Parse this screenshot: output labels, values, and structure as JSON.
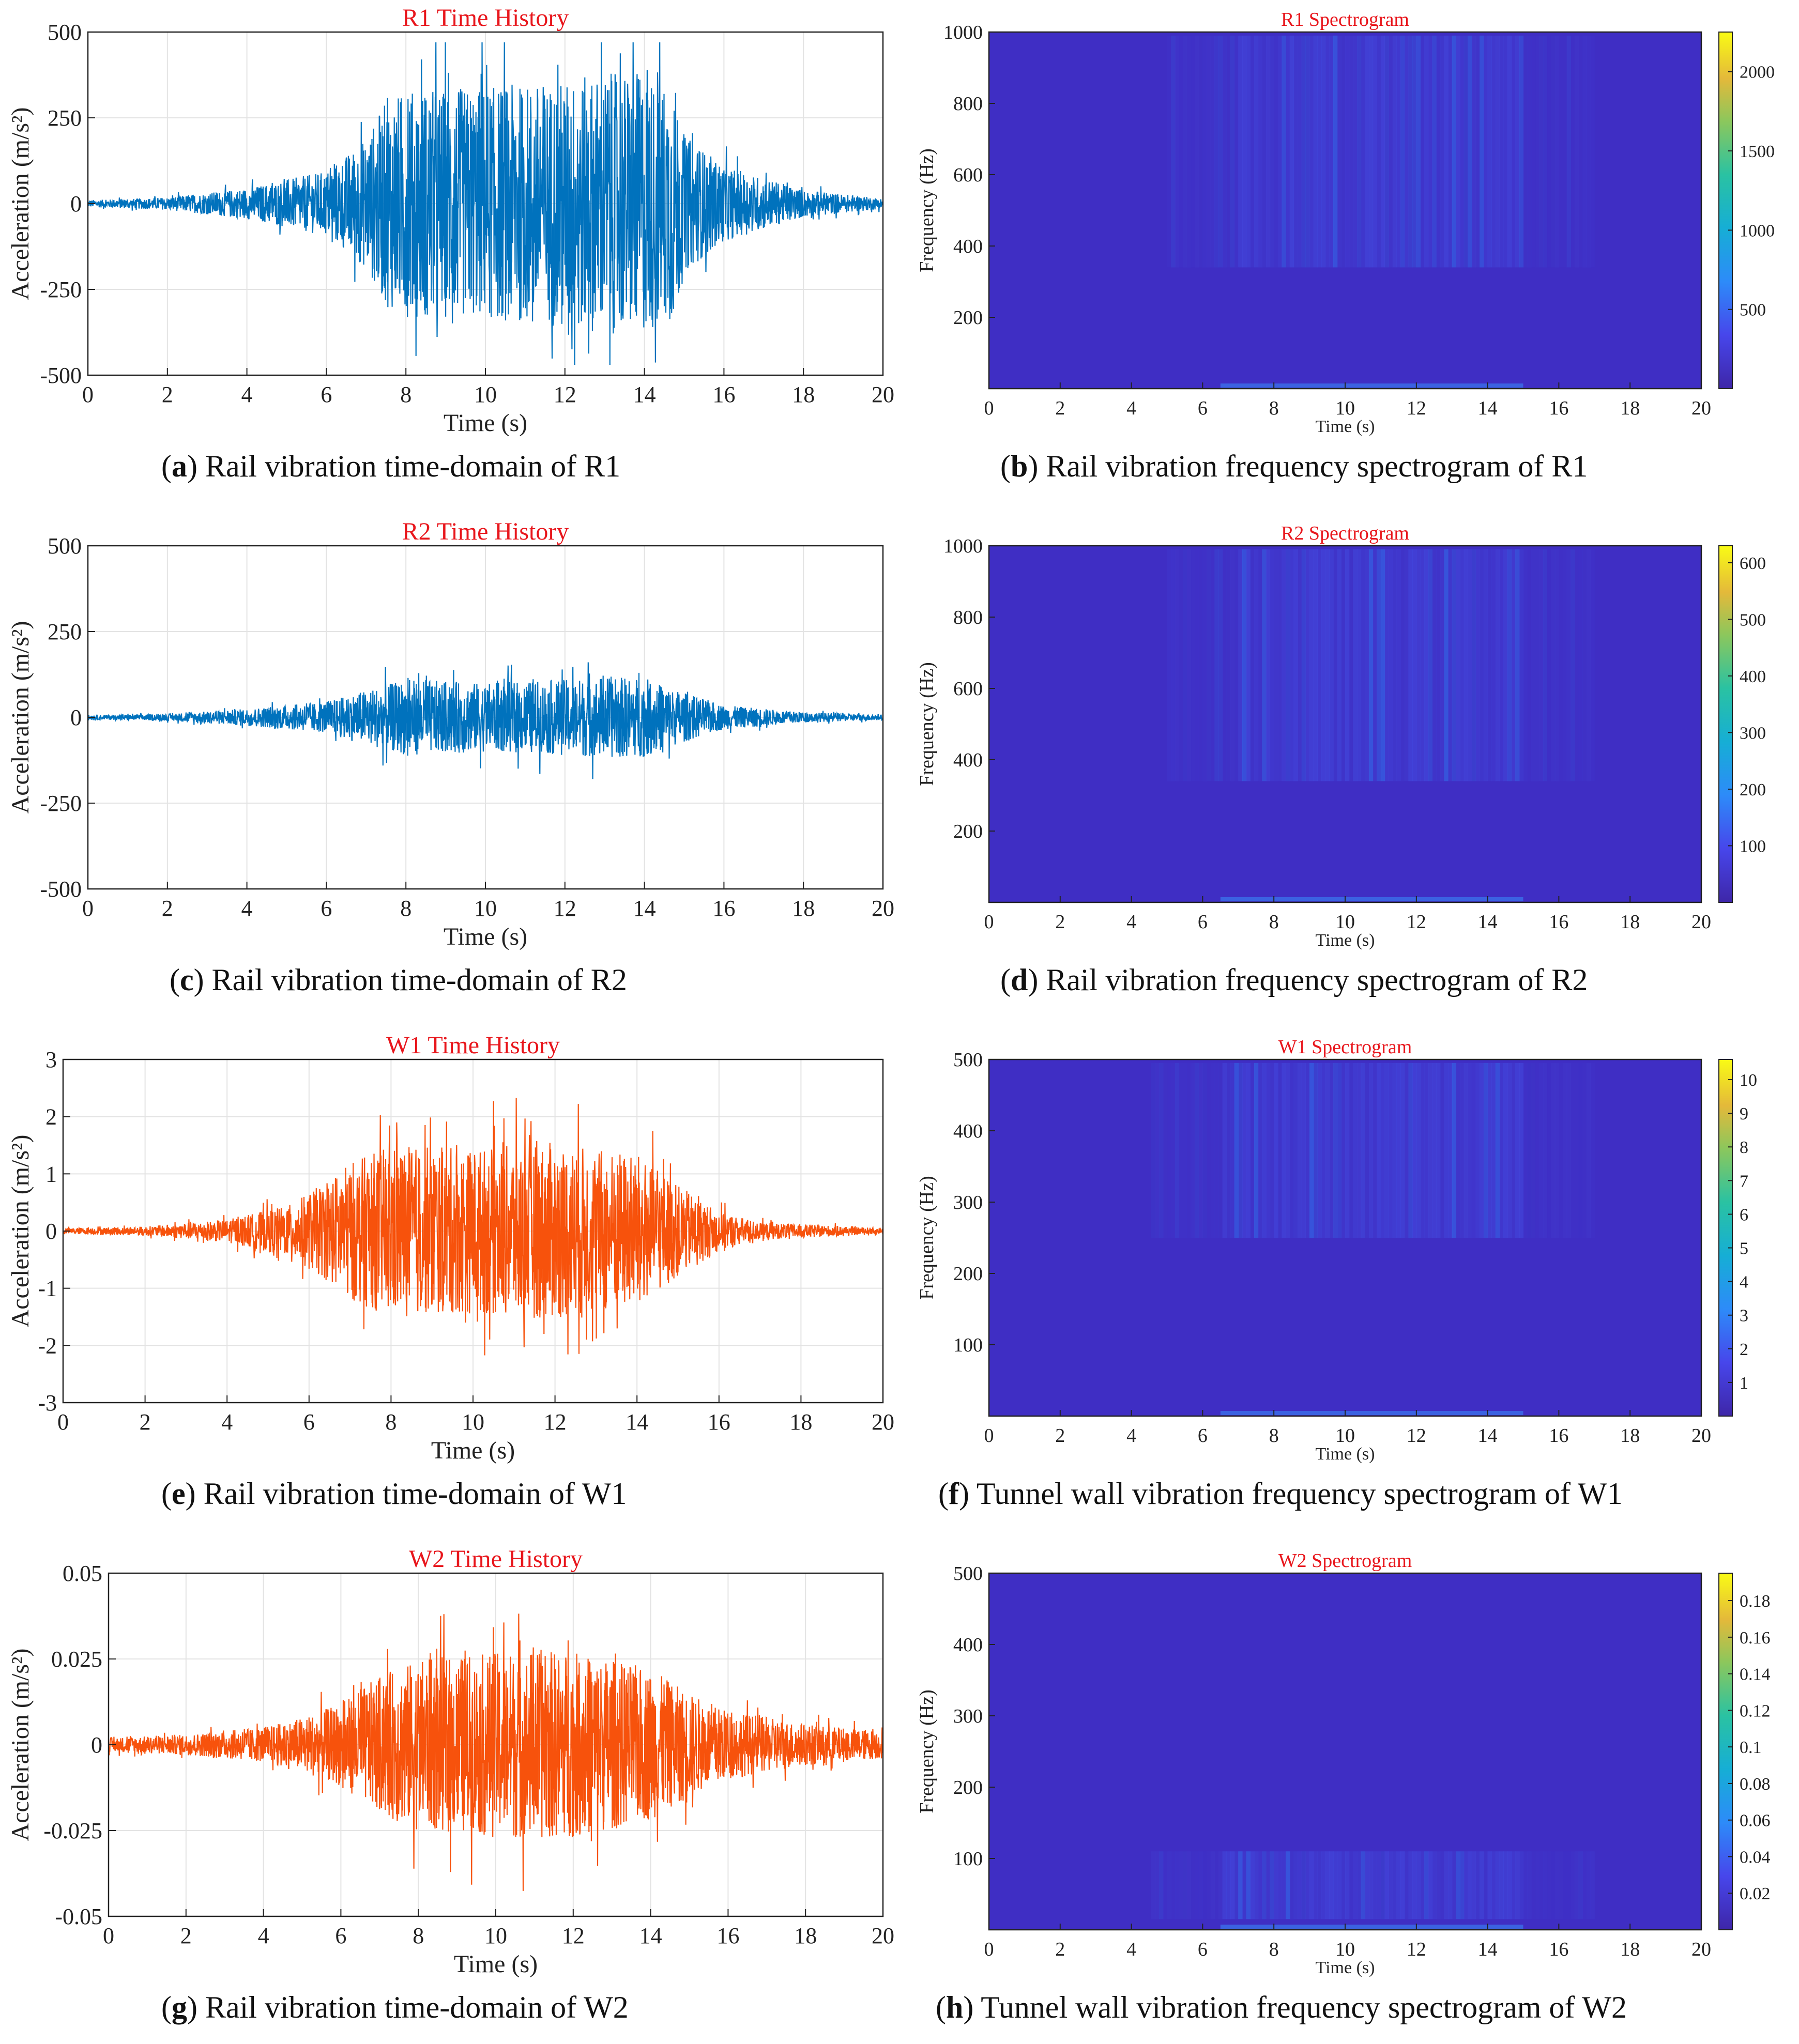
{
  "figure_meta": {
    "time_axis_label": "Time (s)",
    "acc_axis_label": "Acceleration (m/s²)",
    "freq_axis_label": "Frequency (Hz)",
    "colormap": "parula"
  },
  "captions": [
    {
      "letter": "a",
      "text": "Rail vibration time-domain of R1"
    },
    {
      "letter": "b",
      "text": "Rail vibration frequency spectrogram of R1"
    },
    {
      "letter": "c",
      "text": "Rail vibration time-domain of R2"
    },
    {
      "letter": "d",
      "text": "Rail vibration frequency spectrogram of R2"
    },
    {
      "letter": "e",
      "text": "Rail vibration time-domain of W1"
    },
    {
      "letter": "f",
      "text": "Tunnel wall vibration frequency spectrogram of W1"
    },
    {
      "letter": "g",
      "text": "Rail vibration time-domain of W2"
    },
    {
      "letter": "h",
      "text": "Tunnel wall vibration frequency spectrogram of W2"
    }
  ],
  "chart_data": [
    {
      "id": "a",
      "type": "line",
      "title": "R1 Time History",
      "xlabel": "Time (s)",
      "ylabel": "Acceleration (m/s²)",
      "xlim": [
        0,
        20
      ],
      "ylim": [
        -500,
        500
      ],
      "xticks": [
        "0",
        "2",
        "4",
        "6",
        "8",
        "10",
        "12",
        "14",
        "16",
        "18",
        "20"
      ],
      "yticks": [
        "-500",
        "-250",
        "0",
        "250",
        "500"
      ],
      "color": "#0072BD",
      "envelope": {
        "t": [
          0,
          2,
          4,
          6,
          7,
          7.5,
          8,
          10,
          12,
          13,
          14,
          14.8,
          15,
          16,
          18,
          20
        ],
        "amp": [
          10,
          18,
          45,
          95,
          190,
          300,
          330,
          340,
          360,
          380,
          380,
          340,
          200,
          110,
          40,
          15
        ],
        "peak": 470
      }
    },
    {
      "id": "b",
      "type": "heatmap",
      "title": "R1 Spectrogram",
      "xlabel": "Time (s)",
      "ylabel": "Frequency (Hz)",
      "xlim": [
        0,
        20
      ],
      "ylim": [
        0,
        1000
      ],
      "xticks": [
        "0",
        "2",
        "4",
        "6",
        "8",
        "10",
        "12",
        "14",
        "16",
        "18",
        "20"
      ],
      "yticks": [
        "200",
        "400",
        "600",
        "800",
        "1000"
      ],
      "colorbar_ticks": [
        "500",
        "1000",
        "1500",
        "2000"
      ],
      "colorbar_range": [
        0,
        2250
      ],
      "hot_band_hz": [
        340,
        990
      ],
      "active_s": [
        7,
        15
      ]
    },
    {
      "id": "c",
      "type": "line",
      "title": "R2 Time History",
      "xlabel": "Time (s)",
      "ylabel": "Acceleration (m/s²)",
      "xlim": [
        0,
        20
      ],
      "ylim": [
        -500,
        500
      ],
      "xticks": [
        "0",
        "2",
        "4",
        "6",
        "8",
        "10",
        "12",
        "14",
        "16",
        "18",
        "20"
      ],
      "yticks": [
        "-500",
        "-250",
        "0",
        "250",
        "500"
      ],
      "color": "#0072BD",
      "envelope": {
        "t": [
          0,
          2,
          4,
          6,
          7,
          8,
          10,
          12,
          13,
          14,
          14.8,
          16,
          18,
          20
        ],
        "amp": [
          6,
          10,
          25,
          45,
          80,
          110,
          100,
          110,
          120,
          115,
          80,
          35,
          15,
          8
        ],
        "peak": 210
      }
    },
    {
      "id": "d",
      "type": "heatmap",
      "title": "R2 Spectrogram",
      "xlabel": "Time (s)",
      "ylabel": "Frequency (Hz)",
      "xlim": [
        0,
        20
      ],
      "ylim": [
        0,
        1000
      ],
      "xticks": [
        "0",
        "2",
        "4",
        "6",
        "8",
        "10",
        "12",
        "14",
        "16",
        "18",
        "20"
      ],
      "yticks": [
        "200",
        "400",
        "600",
        "800",
        "1000"
      ],
      "colorbar_ticks": [
        "100",
        "200",
        "300",
        "400",
        "500",
        "600"
      ],
      "colorbar_range": [
        0,
        630
      ],
      "hot_band_hz": [
        340,
        990
      ],
      "active_s": [
        7,
        15
      ]
    },
    {
      "id": "e",
      "type": "line",
      "title": "W1 Time History",
      "xlabel": "Time (s)",
      "ylabel": "Acceleration (m/s²)",
      "xlim": [
        0,
        20
      ],
      "ylim": [
        -3,
        3
      ],
      "xticks": [
        "0",
        "2",
        "4",
        "6",
        "8",
        "10",
        "12",
        "14",
        "16",
        "18",
        "20"
      ],
      "yticks": [
        "-3",
        "-2",
        "-1",
        "0",
        "1",
        "2",
        "3"
      ],
      "color": "#F7520C",
      "envelope": {
        "t": [
          0,
          2,
          4,
          5.5,
          6.5,
          7,
          8,
          10,
          11,
          12,
          13,
          14,
          15,
          16,
          17,
          18,
          20
        ],
        "amp": [
          0.05,
          0.08,
          0.2,
          0.45,
          0.9,
          1.2,
          1.5,
          1.45,
          1.5,
          1.55,
          1.45,
          1.35,
          0.8,
          0.35,
          0.15,
          0.12,
          0.05
        ],
        "peak": 2.4
      }
    },
    {
      "id": "f",
      "type": "heatmap",
      "title": "W1 Spectrogram",
      "xlabel": "Time (s)",
      "ylabel": "Frequency (Hz)",
      "xlim": [
        0,
        20
      ],
      "ylim": [
        0,
        500
      ],
      "xticks": [
        "0",
        "2",
        "4",
        "6",
        "8",
        "10",
        "12",
        "14",
        "16",
        "18",
        "20"
      ],
      "yticks": [
        "100",
        "200",
        "300",
        "400",
        "500"
      ],
      "colorbar_ticks": [
        "1",
        "2",
        "3",
        "4",
        "5",
        "6",
        "7",
        "8",
        "9",
        "10"
      ],
      "colorbar_range": [
        0,
        10.6
      ],
      "hot_band_hz": [
        250,
        495
      ],
      "active_s": [
        6.5,
        15
      ]
    },
    {
      "id": "g",
      "type": "line",
      "title": "W2 Time History",
      "xlabel": "Time (s)",
      "ylabel": "Acceleration (m/s²)",
      "xlim": [
        0,
        20
      ],
      "ylim": [
        -0.05,
        0.05
      ],
      "xticks": [
        "0",
        "2",
        "4",
        "6",
        "8",
        "10",
        "12",
        "14",
        "16",
        "18",
        "20"
      ],
      "yticks": [
        "-0.05",
        "-0.025",
        "0",
        "0.025",
        "0.05"
      ],
      "color": "#F7520C",
      "envelope": {
        "t": [
          0,
          2,
          4,
          5,
          6,
          7,
          8,
          10,
          11,
          12,
          13,
          14,
          15,
          16,
          17,
          18,
          20
        ],
        "amp": [
          0.002,
          0.003,
          0.005,
          0.008,
          0.012,
          0.02,
          0.025,
          0.027,
          0.028,
          0.027,
          0.025,
          0.022,
          0.015,
          0.01,
          0.008,
          0.006,
          0.004
        ],
        "peak": 0.046
      }
    },
    {
      "id": "h",
      "type": "heatmap",
      "title": "W2 Spectrogram",
      "xlabel": "Time (s)",
      "ylabel": "Frequency (Hz)",
      "xlim": [
        0,
        20
      ],
      "ylim": [
        0,
        500
      ],
      "xticks": [
        "0",
        "2",
        "4",
        "6",
        "8",
        "10",
        "12",
        "14",
        "16",
        "18",
        "20"
      ],
      "yticks": [
        "100",
        "200",
        "300",
        "400",
        "500"
      ],
      "colorbar_ticks": [
        "0.02",
        "0.04",
        "0.06",
        "0.08",
        "0.1",
        "0.12",
        "0.14",
        "0.16",
        "0.18"
      ],
      "colorbar_range": [
        0,
        0.195
      ],
      "hot_band_hz": [
        15,
        110
      ],
      "active_s": [
        6.5,
        15
      ]
    }
  ]
}
